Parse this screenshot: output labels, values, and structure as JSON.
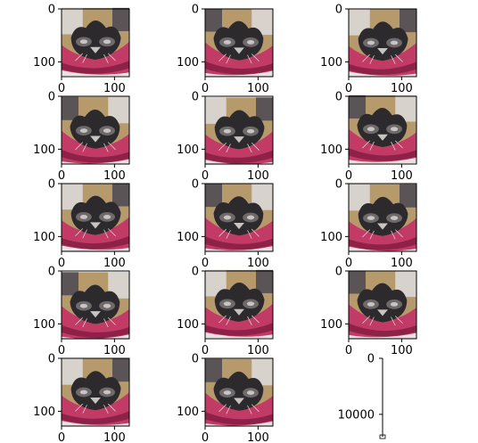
{
  "chart_data": {
    "type": "image-grid",
    "rows": 5,
    "cols": 3,
    "panels": [
      {
        "kind": "image",
        "subject": "cat-on-pink-cushion",
        "variant": 0,
        "x_ticks": [
          "0",
          "100"
        ],
        "y_ticks": [
          "0",
          "100"
        ],
        "xlim": [
          0,
          128
        ],
        "ylim": [
          128,
          0
        ]
      },
      {
        "kind": "image",
        "subject": "cat-on-pink-cushion",
        "variant": 1,
        "x_ticks": [
          "0",
          "100"
        ],
        "y_ticks": [
          "0",
          "100"
        ],
        "xlim": [
          0,
          128
        ],
        "ylim": [
          128,
          0
        ]
      },
      {
        "kind": "image",
        "subject": "cat-on-pink-cushion",
        "variant": 2,
        "x_ticks": [
          "0",
          "100"
        ],
        "y_ticks": [
          "0",
          "100"
        ],
        "xlim": [
          0,
          128
        ],
        "ylim": [
          128,
          0
        ]
      },
      {
        "kind": "image",
        "subject": "cat-on-pink-cushion",
        "variant": 3,
        "x_ticks": [
          "0",
          "100"
        ],
        "y_ticks": [
          "0",
          "100"
        ],
        "xlim": [
          0,
          128
        ],
        "ylim": [
          128,
          0
        ]
      },
      {
        "kind": "image",
        "subject": "cat-on-pink-cushion",
        "variant": 4,
        "x_ticks": [
          "0",
          "100"
        ],
        "y_ticks": [
          "0",
          "100"
        ],
        "xlim": [
          0,
          128
        ],
        "ylim": [
          128,
          0
        ]
      },
      {
        "kind": "image",
        "subject": "cat-on-pink-cushion",
        "variant": 5,
        "x_ticks": [
          "0",
          "100"
        ],
        "y_ticks": [
          "0",
          "100"
        ],
        "xlim": [
          0,
          128
        ],
        "ylim": [
          128,
          0
        ]
      },
      {
        "kind": "image",
        "subject": "cat-on-pink-cushion",
        "variant": 6,
        "x_ticks": [
          "0",
          "100"
        ],
        "y_ticks": [
          "0",
          "100"
        ],
        "xlim": [
          0,
          128
        ],
        "ylim": [
          128,
          0
        ]
      },
      {
        "kind": "image",
        "subject": "cat-on-pink-cushion",
        "variant": 7,
        "x_ticks": [
          "0",
          "100"
        ],
        "y_ticks": [
          "0",
          "100"
        ],
        "xlim": [
          0,
          128
        ],
        "ylim": [
          128,
          0
        ]
      },
      {
        "kind": "image",
        "subject": "cat-on-pink-cushion",
        "variant": 8,
        "x_ticks": [
          "0",
          "100"
        ],
        "y_ticks": [
          "0",
          "100"
        ],
        "xlim": [
          0,
          128
        ],
        "ylim": [
          128,
          0
        ]
      },
      {
        "kind": "image",
        "subject": "cat-on-pink-cushion",
        "variant": 9,
        "x_ticks": [
          "0",
          "100"
        ],
        "y_ticks": [
          "0",
          "100"
        ],
        "xlim": [
          0,
          128
        ],
        "ylim": [
          128,
          0
        ]
      },
      {
        "kind": "image",
        "subject": "cat-on-pink-cushion",
        "variant": 10,
        "x_ticks": [
          "0",
          "100"
        ],
        "y_ticks": [
          "0",
          "100"
        ],
        "xlim": [
          0,
          128
        ],
        "ylim": [
          128,
          0
        ]
      },
      {
        "kind": "image",
        "subject": "cat-on-pink-cushion",
        "variant": 11,
        "x_ticks": [
          "0",
          "100"
        ],
        "y_ticks": [
          "0",
          "100"
        ],
        "xlim": [
          0,
          128
        ],
        "ylim": [
          128,
          0
        ]
      },
      {
        "kind": "image",
        "subject": "cat-on-pink-cushion",
        "variant": 12,
        "x_ticks": [
          "0",
          "100"
        ],
        "y_ticks": [
          "0",
          "100"
        ],
        "xlim": [
          0,
          128
        ],
        "ylim": [
          128,
          0
        ]
      },
      {
        "kind": "image",
        "subject": "cat-on-pink-cushion",
        "variant": 13,
        "x_ticks": [
          "0",
          "100"
        ],
        "y_ticks": [
          "0",
          "100"
        ],
        "xlim": [
          0,
          128
        ],
        "ylim": [
          128,
          0
        ]
      },
      {
        "kind": "squashed-axes",
        "x_ticks": [
          "0"
        ],
        "y_ticks": [
          "0",
          "10000"
        ],
        "xlim": [
          0,
          1
        ],
        "ylim": [
          14000,
          0
        ]
      }
    ]
  },
  "colors": {
    "cushion_pink": "#c23a66",
    "cushion_dark": "#8e2147",
    "cat_dark": "#2c2a2c",
    "cat_gray": "#6e6a6c",
    "cat_light": "#c9c4c2",
    "wall_tan": "#b79a6c",
    "floor_white": "#e9e2e4"
  }
}
